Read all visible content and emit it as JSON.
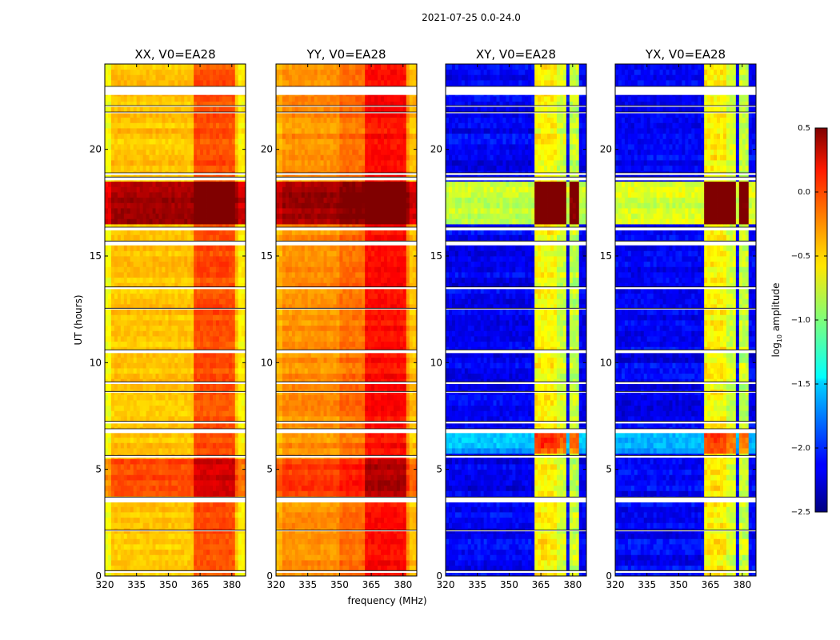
{
  "chart_data": {
    "type": "heatmap",
    "title": "2021-07-25 0.0-24.0",
    "xlabel": "frequency (MHz)",
    "ylabel": "UT (hours)",
    "xlim": [
      320,
      386.5
    ],
    "ylim": [
      0,
      24
    ],
    "xticks": [
      320,
      335,
      350,
      365,
      380
    ],
    "xtick_labels": [
      "320",
      "335",
      "350",
      "365",
      "380"
    ],
    "yticks": [
      0,
      5,
      10,
      15,
      20
    ],
    "ytick_labels": [
      "0",
      "5",
      "10",
      "15",
      "20"
    ],
    "colormap": "jet",
    "colorbar": {
      "label_prefix": "log",
      "label_sub": "10",
      "label_suffix": " amplitude",
      "range": [
        -2.5,
        0.5
      ],
      "ticks": [
        0.5,
        0.0,
        -0.5,
        -1.0,
        -1.5,
        -2.0,
        -2.5
      ],
      "tick_labels": [
        "0.5",
        "0.0",
        "−0.5",
        "−1.0",
        "−1.5",
        "−2.0",
        "−2.5"
      ]
    },
    "grid_step": {
      "hours": 0.25,
      "mhz": 1.5
    },
    "flagged_hours": [
      [
        0.15,
        0.25
      ],
      [
        2.1,
        2.15
      ],
      [
        3.45,
        3.7
      ],
      [
        5.55,
        5.65
      ],
      [
        6.7,
        6.9
      ],
      [
        7.15,
        7.25
      ],
      [
        8.6,
        8.65
      ],
      [
        9.0,
        9.1
      ],
      [
        10.45,
        10.6
      ],
      [
        12.5,
        12.55
      ],
      [
        13.45,
        13.55
      ],
      [
        15.5,
        15.7
      ],
      [
        16.2,
        16.35
      ],
      [
        18.55,
        18.7
      ],
      [
        18.8,
        18.9
      ],
      [
        21.7,
        21.75
      ],
      [
        22.0,
        22.05
      ],
      [
        22.55,
        22.95
      ]
    ],
    "panels": [
      {
        "name": "XX",
        "title": "XX, V0=EA28",
        "base_level": -0.45,
        "time_bands": [
          {
            "hours": [
              3.7,
              5.5
            ],
            "level": -0.1
          },
          {
            "hours": [
              16.4,
              18.5
            ],
            "level": 0.4
          }
        ],
        "freq_features": [
          {
            "mhz": [
              320,
              323
            ],
            "offset": -0.2
          },
          {
            "mhz": [
              362,
              382
            ],
            "offset": 0.35
          },
          {
            "mhz": [
              383,
              386.5
            ],
            "offset": -0.15
          }
        ],
        "noise": 0.12
      },
      {
        "name": "YY",
        "title": "YY, V0=EA28",
        "base_level": -0.3,
        "time_bands": [
          {
            "hours": [
              3.7,
              5.5
            ],
            "level": -0.05
          },
          {
            "hours": [
              16.4,
              18.5
            ],
            "level": 0.4
          }
        ],
        "freq_features": [
          {
            "mhz": [
              320,
              323
            ],
            "offset": -0.1
          },
          {
            "mhz": [
              350,
              362
            ],
            "offset": 0.1
          },
          {
            "mhz": [
              362,
              382
            ],
            "offset": 0.4
          },
          {
            "mhz": [
              383,
              386.5
            ],
            "offset": -0.15
          }
        ],
        "noise": 0.12
      },
      {
        "name": "XY",
        "title": "XY, V0=EA28",
        "base_level": -2.15,
        "time_bands": [
          {
            "hours": [
              5.7,
              6.7
            ],
            "level": -1.6
          },
          {
            "hours": [
              16.4,
              18.5
            ],
            "level": -0.75
          }
        ],
        "freq_features": [
          {
            "mhz": [
              334.5,
              335.5
            ],
            "offset": 0.6
          },
          {
            "mhz": [
              362,
              366.5
            ],
            "offset": 1.55
          },
          {
            "mhz": [
              367.2,
              371.8
            ],
            "offset": 1.55
          },
          {
            "mhz": [
              372.5,
              377
            ],
            "offset": 1.4
          },
          {
            "mhz": [
              377.8,
              382.3
            ],
            "offset": 1.35
          }
        ],
        "noise": 0.2
      },
      {
        "name": "YX",
        "title": "YX, V0=EA28",
        "base_level": -2.15,
        "time_bands": [
          {
            "hours": [
              5.7,
              6.7
            ],
            "level": -1.6
          },
          {
            "hours": [
              16.4,
              18.5
            ],
            "level": -0.75
          }
        ],
        "freq_features": [
          {
            "mhz": [
              334.5,
              335.5
            ],
            "offset": 0.6
          },
          {
            "mhz": [
              362,
              366.5
            ],
            "offset": 1.55
          },
          {
            "mhz": [
              367.2,
              371.8
            ],
            "offset": 1.55
          },
          {
            "mhz": [
              372.5,
              377
            ],
            "offset": 1.4
          },
          {
            "mhz": [
              377.8,
              382.3
            ],
            "offset": 1.35
          }
        ],
        "noise": 0.2
      }
    ]
  }
}
